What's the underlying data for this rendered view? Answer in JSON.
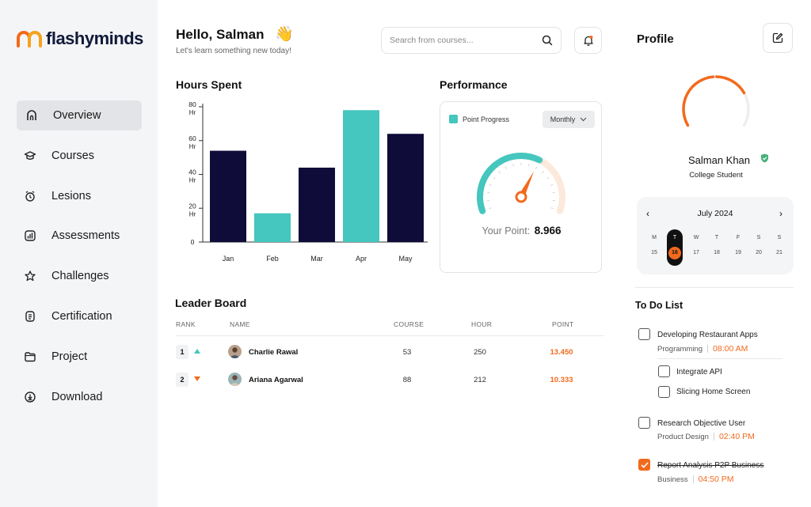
{
  "brand": {
    "name": "flashyminds",
    "accent": "#f26a1d",
    "teal": "#45c6be",
    "navy": "#0f0c3a"
  },
  "sidebar": {
    "items": [
      {
        "label": "Overview",
        "icon": "home-icon",
        "active": true
      },
      {
        "label": "Courses",
        "icon": "graduation-cap-icon"
      },
      {
        "label": "Lesions",
        "icon": "alarm-clock-icon"
      },
      {
        "label": "Assessments",
        "icon": "bar-chart-icon"
      },
      {
        "label": "Challenges",
        "icon": "star-icon"
      },
      {
        "label": "Certification",
        "icon": "document-icon"
      },
      {
        "label": "Project",
        "icon": "folder-icon"
      },
      {
        "label": "Download",
        "icon": "download-icon"
      }
    ]
  },
  "header": {
    "greeting": "Hello, Salman",
    "wave": "👋",
    "subtitle": "Let's learn something new today!",
    "search_placeholder": "Search from courses..."
  },
  "hours": {
    "title": "Hours Spent",
    "chart_data": {
      "type": "bar",
      "title": "Hours Spent",
      "categories": [
        "Jan",
        "Feb",
        "Mar",
        "Apr",
        "May"
      ],
      "values": [
        54,
        17,
        44,
        78,
        64
      ],
      "colors": [
        "#0f0c3a",
        "#45c6be",
        "#0f0c3a",
        "#45c6be",
        "#0f0c3a"
      ],
      "ylim": [
        0,
        80
      ],
      "yticks": [
        {
          "value": 80,
          "label": "80",
          "unit": "Hr"
        },
        {
          "value": 60,
          "label": "60",
          "unit": "Hr"
        },
        {
          "value": 40,
          "label": "40",
          "unit": "Hr"
        },
        {
          "value": 20,
          "label": "20",
          "unit": "Hr"
        },
        {
          "value": 0,
          "label": "0",
          "unit": ""
        }
      ],
      "xlabel": "",
      "ylabel": ""
    }
  },
  "performance": {
    "title": "Performance",
    "legend": "Point Progress",
    "period": "Monthly",
    "point_label": "Your Point:",
    "point_value": "8.966",
    "gauge_fraction": 0.62
  },
  "leaderboard": {
    "title": "Leader Board",
    "columns": [
      "RANK",
      "NAME",
      "COURSE",
      "HOUR",
      "POINT"
    ],
    "rows": [
      {
        "rank": "1",
        "trend": "up",
        "name": "Charlie Rawal",
        "course": "53",
        "hour": "250",
        "point": "13.450"
      },
      {
        "rank": "2",
        "trend": "down",
        "name": "Ariana Agarwal",
        "course": "88",
        "hour": "212",
        "point": "10.333"
      }
    ]
  },
  "profile": {
    "title": "Profile",
    "name": "Salman Khan",
    "role": "College Student",
    "progress_fraction": 0.75
  },
  "calendar": {
    "month": "July 2024",
    "prev": "‹",
    "next": "›",
    "days": [
      {
        "dow": "M",
        "day": "15"
      },
      {
        "dow": "T",
        "day": "16",
        "selected": true
      },
      {
        "dow": "W",
        "day": "17"
      },
      {
        "dow": "T",
        "day": "18"
      },
      {
        "dow": "F",
        "day": "19"
      },
      {
        "dow": "S",
        "day": "20"
      },
      {
        "dow": "S",
        "day": "21"
      }
    ]
  },
  "todo": {
    "title": "To Do List",
    "items": [
      {
        "name": "Developing Restaurant Apps",
        "category": "Programming",
        "time": "08:00 AM",
        "checked": false
      },
      {
        "name": "Integrate API",
        "checked": false
      },
      {
        "name": "Slicing Home Screen",
        "checked": false
      },
      {
        "name": "Research Objective User",
        "category": "Product Design",
        "time": "02:40 PM",
        "checked": false
      },
      {
        "name": "Report Analysis P2P Business",
        "category": "Business",
        "time": "04:50 PM",
        "checked": true
      }
    ]
  }
}
